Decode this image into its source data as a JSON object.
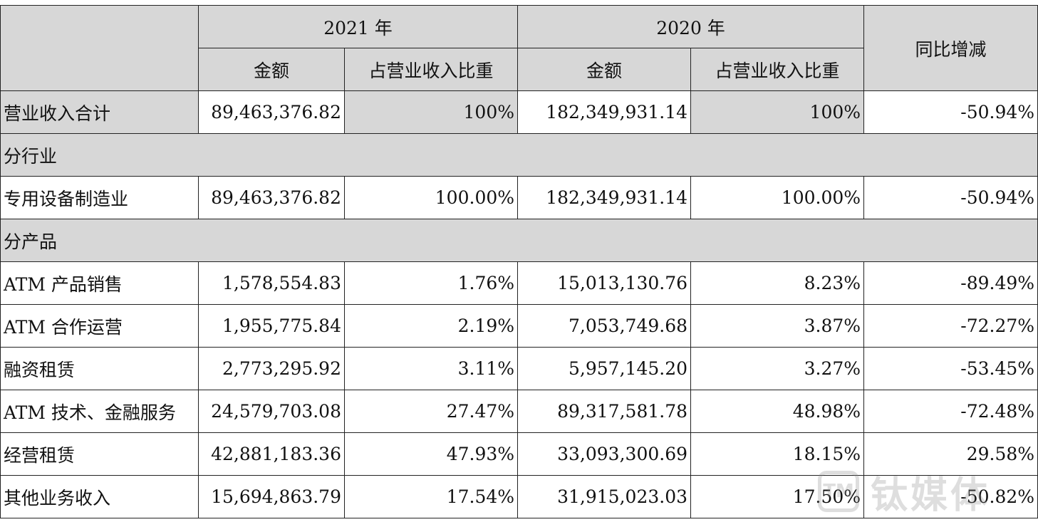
{
  "header": {
    "year_2021": "2021 年",
    "year_2020": "2020 年",
    "yoy": "同比增减",
    "amount_2021": "金额",
    "ratio_2021": "占营业收入比重",
    "amount_2020": "金额",
    "ratio_2020": "占营业收入比重"
  },
  "total": {
    "label": "营业收入合计",
    "amount_2021": "89,463,376.82",
    "ratio_2021": "100%",
    "amount_2020": "182,349,931.14",
    "ratio_2020": "100%",
    "yoy": "-50.94%"
  },
  "section_industry": "分行业",
  "industry_rows": [
    {
      "label": "专用设备制造业",
      "amount_2021": "89,463,376.82",
      "ratio_2021": "100.00%",
      "amount_2020": "182,349,931.14",
      "ratio_2020": "100.00%",
      "yoy": "-50.94%"
    }
  ],
  "section_product": "分产品",
  "product_rows": [
    {
      "label": "ATM 产品销售",
      "amount_2021": "1,578,554.83",
      "ratio_2021": "1.76%",
      "amount_2020": "15,013,130.76",
      "ratio_2020": "8.23%",
      "yoy": "-89.49%"
    },
    {
      "label": "ATM 合作运营",
      "amount_2021": "1,955,775.84",
      "ratio_2021": "2.19%",
      "amount_2020": "7,053,749.68",
      "ratio_2020": "3.87%",
      "yoy": "-72.27%"
    },
    {
      "label": "融资租赁",
      "amount_2021": "2,773,295.92",
      "ratio_2021": "3.11%",
      "amount_2020": "5,957,145.20",
      "ratio_2020": "3.27%",
      "yoy": "-53.45%"
    },
    {
      "label": "ATM 技术、金融服务",
      "amount_2021": "24,579,703.08",
      "ratio_2021": "27.47%",
      "amount_2020": "89,317,581.78",
      "ratio_2020": "48.98%",
      "yoy": "-72.48%"
    },
    {
      "label": "经营租赁",
      "amount_2021": "42,881,183.36",
      "ratio_2021": "47.93%",
      "amount_2020": "33,093,300.69",
      "ratio_2020": "18.15%",
      "yoy": "29.58%"
    },
    {
      "label": "其他业务收入",
      "amount_2021": "15,694,863.79",
      "ratio_2021": "17.54%",
      "amount_2020": "31,915,023.03",
      "ratio_2020": "17.50%",
      "yoy": "-50.82%"
    }
  ],
  "watermark": {
    "logo_text": "TM",
    "brand_text": "钛媒体",
    "color": "#8a8a8a"
  }
}
